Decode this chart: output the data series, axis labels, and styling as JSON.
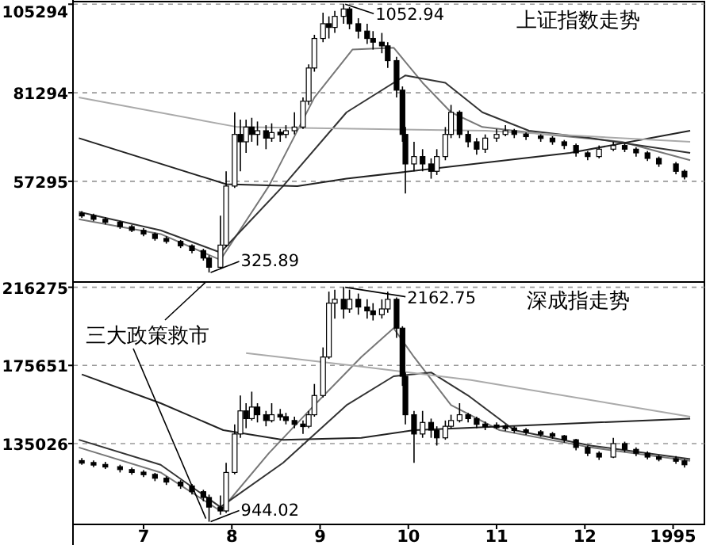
{
  "chart_data": [
    {
      "type": "candlestick",
      "title": "上证指数走势",
      "xlim": [
        "1994-06-07",
        "1995-01-12"
      ],
      "ylim": [
        30000,
        106000
      ],
      "tick_labels": "y",
      "grid": "y",
      "yticks": [
        105294,
        81294,
        57295
      ],
      "x": [
        "1994-06-10",
        "1994-06-14",
        "1994-06-18",
        "1994-06-23",
        "1994-06-27",
        "1994-07-01",
        "1994-07-05",
        "1994-07-09",
        "1994-07-14",
        "1994-07-18",
        "1994-07-22",
        "1994-07-24",
        "1994-07-28",
        "1994-07-30",
        "1994-08-02",
        "1994-08-04",
        "1994-08-06",
        "1994-08-08",
        "1994-08-10",
        "1994-08-13",
        "1994-08-15",
        "1994-08-18",
        "1994-08-20",
        "1994-08-23",
        "1994-08-26",
        "1994-08-28",
        "1994-08-30",
        "1994-09-02",
        "1994-09-04",
        "1994-09-06",
        "1994-09-09",
        "1994-09-11",
        "1994-09-14",
        "1994-09-17",
        "1994-09-19",
        "1994-09-22",
        "1994-09-24",
        "1994-09-27",
        "1994-09-29",
        "1994-09-30",
        "1994-10-03",
        "1994-10-06",
        "1994-10-09",
        "1994-10-11",
        "1994-10-14",
        "1994-10-16",
        "1994-10-19",
        "1994-10-22",
        "1994-10-25",
        "1994-10-28",
        "1994-11-01",
        "1994-11-04",
        "1994-11-07",
        "1994-11-11",
        "1994-11-16",
        "1994-11-20",
        "1994-11-24",
        "1994-11-28",
        "1994-12-02",
        "1994-12-06",
        "1994-12-11",
        "1994-12-15",
        "1994-12-19",
        "1994-12-23",
        "1994-12-27",
        "1995-01-02",
        "1995-01-05"
      ],
      "ohlc": [
        [
          48500,
          49200,
          47400,
          48000
        ],
        [
          48000,
          48500,
          46500,
          47000
        ],
        [
          47000,
          47600,
          45600,
          46200
        ],
        [
          46200,
          46600,
          44400,
          45000
        ],
        [
          45000,
          45500,
          43500,
          44000
        ],
        [
          44000,
          44600,
          42400,
          43000
        ],
        [
          43000,
          43400,
          41200,
          41800
        ],
        [
          41800,
          42400,
          40400,
          41000
        ],
        [
          41000,
          41400,
          39200,
          39800
        ],
        [
          39800,
          40200,
          37800,
          38500
        ],
        [
          38500,
          39000,
          35800,
          36500
        ],
        [
          36500,
          37200,
          32589,
          34000
        ],
        [
          34000,
          48000,
          33500,
          40000
        ],
        [
          40000,
          60000,
          39500,
          56000
        ],
        [
          56000,
          76000,
          55500,
          70000
        ],
        [
          70000,
          74000,
          60000,
          68000
        ],
        [
          68000,
          74000,
          65000,
          72000
        ],
        [
          72000,
          74500,
          68000,
          70000
        ],
        [
          70000,
          73500,
          67000,
          71000
        ],
        [
          71000,
          72500,
          66000,
          69000
        ],
        [
          69000,
          73000,
          68000,
          70500
        ],
        [
          70500,
          71500,
          68000,
          70000
        ],
        [
          70000,
          72500,
          69000,
          71000
        ],
        [
          71000,
          76000,
          70000,
          72000
        ],
        [
          72000,
          80000,
          71500,
          79000
        ],
        [
          79000,
          89000,
          78000,
          88000
        ],
        [
          88000,
          97000,
          87000,
          96000
        ],
        [
          96000,
          103000,
          95000,
          100000
        ],
        [
          100000,
          102000,
          96000,
          99000
        ],
        [
          99000,
          103500,
          97500,
          102000
        ],
        [
          102000,
          105294,
          100000,
          104000
        ],
        [
          104000,
          104500,
          98500,
          100000
        ],
        [
          100000,
          101500,
          96000,
          98000
        ],
        [
          98000,
          100000,
          94500,
          96000
        ],
        [
          96000,
          98000,
          93000,
          95000
        ],
        [
          95000,
          97500,
          92000,
          94000
        ],
        [
          94000,
          95000,
          88000,
          90000
        ],
        [
          90000,
          91000,
          80000,
          82000
        ],
        [
          82000,
          83000,
          68000,
          70000
        ],
        [
          70000,
          72000,
          54000,
          62000
        ],
        [
          62000,
          68000,
          60000,
          64000
        ],
        [
          64000,
          66000,
          60000,
          62000
        ],
        [
          62000,
          63500,
          58000,
          60000
        ],
        [
          60000,
          66000,
          59000,
          64000
        ],
        [
          64000,
          72000,
          63000,
          70000
        ],
        [
          70000,
          78000,
          69000,
          76000
        ],
        [
          76000,
          76500,
          69000,
          70000
        ],
        [
          70000,
          71000,
          66500,
          68000
        ],
        [
          68000,
          69000,
          64500,
          66000
        ],
        [
          66000,
          70000,
          65000,
          69000
        ],
        [
          69000,
          71500,
          68000,
          70000
        ],
        [
          70000,
          72500,
          69500,
          71000
        ],
        [
          71000,
          71500,
          69000,
          70000
        ],
        [
          70000,
          70500,
          68500,
          69500
        ],
        [
          69500,
          70000,
          68000,
          69000
        ],
        [
          69000,
          69500,
          67200,
          68000
        ],
        [
          68000,
          68500,
          66000,
          67000
        ],
        [
          67000,
          67500,
          64000,
          65000
        ],
        [
          65000,
          65500,
          63000,
          64000
        ],
        [
          64000,
          67000,
          63500,
          66000
        ],
        [
          66000,
          68000,
          65500,
          67000
        ],
        [
          67000,
          67500,
          65200,
          66000
        ],
        [
          66000,
          66500,
          64000,
          65000
        ],
        [
          65000,
          65500,
          62800,
          63500
        ],
        [
          63500,
          64000,
          61200,
          62000
        ],
        [
          62000,
          62500,
          59200,
          60000
        ],
        [
          60000,
          60500,
          57800,
          58500
        ]
      ],
      "series": [
        {
          "type": "line",
          "color": "#777777",
          "x": [
            "1994-06-09",
            "1994-07-07",
            "1994-07-28",
            "1994-08-14",
            "1994-08-30",
            "1994-09-12",
            "1994-09-26",
            "1994-10-06",
            "1994-10-16",
            "1994-10-27",
            "1994-11-18",
            "1994-12-14",
            "1995-01-07"
          ],
          "values": [
            47000,
            43000,
            36000,
            56000,
            80000,
            93000,
            93500,
            84000,
            76000,
            72000,
            70000,
            68000,
            63000
          ]
        },
        {
          "type": "line",
          "color": "#333333",
          "x": [
            "1994-06-09",
            "1994-07-07",
            "1994-07-28",
            "1994-08-19",
            "1994-09-10",
            "1994-09-30",
            "1994-10-14",
            "1994-10-27",
            "1994-11-12",
            "1994-12-03",
            "1995-01-07"
          ],
          "values": [
            49000,
            44000,
            38000,
            56000,
            76000,
            86000,
            84000,
            76000,
            71000,
            69000,
            65000
          ]
        },
        {
          "type": "line",
          "color": "#222222",
          "x": [
            "1994-06-09",
            "1994-07-30",
            "1994-08-24",
            "1994-09-10",
            "1994-11-26",
            "1995-01-07"
          ],
          "values": [
            69000,
            56500,
            56000,
            58000,
            65000,
            71000
          ]
        },
        {
          "type": "line",
          "color": "#aaaaaa",
          "x": [
            "1994-06-09",
            "1994-08-03",
            "1994-10-28",
            "1995-01-07"
          ],
          "values": [
            80000,
            72000,
            71000,
            68000
          ]
        }
      ],
      "annotations": [
        {
          "text": "1052.94",
          "x": "1994-09-09",
          "y": 105294
        },
        {
          "text": "325.89",
          "x": "1994-07-24",
          "y": 32589
        }
      ]
    },
    {
      "type": "candlestick",
      "title": "深成指走势",
      "xlim": [
        "1994-06-07",
        "1995-01-12"
      ],
      "ylim": [
        93000,
        219000
      ],
      "grid": "y",
      "yticks": [
        216275,
        175651,
        135026
      ],
      "xticks": [
        {
          "value": "1994-07",
          "label": "7"
        },
        {
          "value": "1994-08",
          "label": "8"
        },
        {
          "value": "1994-09",
          "label": "9"
        },
        {
          "value": "1994-10",
          "label": "10"
        },
        {
          "value": "1994-11",
          "label": "11"
        },
        {
          "value": "1994-12",
          "label": "12"
        },
        "1995"
      ],
      "x": [
        "1994-06-10",
        "1994-06-14",
        "1994-06-18",
        "1994-06-23",
        "1994-06-27",
        "1994-07-01",
        "1994-07-05",
        "1994-07-09",
        "1994-07-14",
        "1994-07-18",
        "1994-07-22",
        "1994-07-24",
        "1994-07-28",
        "1994-07-30",
        "1994-08-02",
        "1994-08-04",
        "1994-08-06",
        "1994-08-08",
        "1994-08-10",
        "1994-08-13",
        "1994-08-15",
        "1994-08-18",
        "1994-08-20",
        "1994-08-23",
        "1994-08-26",
        "1994-08-28",
        "1994-08-30",
        "1994-09-02",
        "1994-09-04",
        "1994-09-06",
        "1994-09-09",
        "1994-09-11",
        "1994-09-14",
        "1994-09-17",
        "1994-09-19",
        "1994-09-22",
        "1994-09-24",
        "1994-09-27",
        "1994-09-29",
        "1994-09-30",
        "1994-10-03",
        "1994-10-06",
        "1994-10-09",
        "1994-10-11",
        "1994-10-14",
        "1994-10-16",
        "1994-10-19",
        "1994-10-22",
        "1994-10-25",
        "1994-10-28",
        "1994-11-01",
        "1994-11-04",
        "1994-11-07",
        "1994-11-11",
        "1994-11-16",
        "1994-11-20",
        "1994-11-24",
        "1994-11-28",
        "1994-12-02",
        "1994-12-06",
        "1994-12-11",
        "1994-12-15",
        "1994-12-19",
        "1994-12-23",
        "1994-12-27",
        "1995-01-02",
        "1995-01-05"
      ],
      "ohlc": [
        [
          126000,
          127500,
          124000,
          125000
        ],
        [
          125000,
          126200,
          122800,
          124000
        ],
        [
          124000,
          125500,
          121800,
          123000
        ],
        [
          123000,
          124000,
          120000,
          121500
        ],
        [
          121500,
          122500,
          118800,
          120000
        ],
        [
          120000,
          121200,
          117600,
          119000
        ],
        [
          119000,
          119800,
          115500,
          117000
        ],
        [
          117000,
          118000,
          113500,
          115000
        ],
        [
          115000,
          116000,
          111500,
          113000
        ],
        [
          113000,
          114000,
          108500,
          110000
        ],
        [
          110000,
          111000,
          105000,
          107000
        ],
        [
          107000,
          108500,
          94402,
          102000
        ],
        [
          102000,
          108000,
          98000,
          100000
        ],
        [
          100000,
          125000,
          99000,
          120000
        ],
        [
          120000,
          145000,
          119000,
          140000
        ],
        [
          140000,
          160000,
          138000,
          152000
        ],
        [
          152000,
          156000,
          143000,
          148000
        ],
        [
          148000,
          162000,
          147000,
          154000
        ],
        [
          154000,
          156000,
          146000,
          150000
        ],
        [
          150000,
          152000,
          144000,
          147000
        ],
        [
          147000,
          156000,
          146000,
          150000
        ],
        [
          150000,
          153000,
          147000,
          149000
        ],
        [
          149000,
          151000,
          145000,
          147000
        ],
        [
          147000,
          149000,
          143000,
          145000
        ],
        [
          145000,
          147000,
          140000,
          144000
        ],
        [
          144000,
          152000,
          143000,
          150000
        ],
        [
          150000,
          166000,
          149000,
          160000
        ],
        [
          160000,
          185000,
          159000,
          180000
        ],
        [
          180000,
          214000,
          179000,
          208000
        ],
        [
          208000,
          215000,
          200000,
          210000
        ],
        [
          210000,
          216275,
          200000,
          205000
        ],
        [
          205000,
          215000,
          203000,
          210000
        ],
        [
          210000,
          213000,
          202000,
          206000
        ],
        [
          206000,
          210000,
          200000,
          204000
        ],
        [
          204000,
          208000,
          199000,
          202000
        ],
        [
          202000,
          210000,
          200000,
          205000
        ],
        [
          205000,
          214000,
          203000,
          210000
        ],
        [
          210000,
          211000,
          190000,
          195000
        ],
        [
          195000,
          196000,
          165000,
          170000
        ],
        [
          170000,
          172000,
          145000,
          150000
        ],
        [
          150000,
          152000,
          125000,
          140000
        ],
        [
          140000,
          152000,
          138000,
          146000
        ],
        [
          146000,
          148000,
          138000,
          142000
        ],
        [
          142000,
          144000,
          134000,
          138000
        ],
        [
          138000,
          147000,
          137000,
          144000
        ],
        [
          144000,
          150000,
          143000,
          147000
        ],
        [
          147000,
          156000,
          146000,
          150000
        ],
        [
          150000,
          151000,
          146000,
          148000
        ],
        [
          148000,
          149000,
          143000,
          145000
        ],
        [
          145000,
          146500,
          142000,
          144000
        ],
        [
          144000,
          146000,
          142500,
          144000
        ],
        [
          144000,
          145000,
          141500,
          143000
        ],
        [
          143000,
          144000,
          140500,
          142000
        ],
        [
          142000,
          143000,
          139500,
          141000
        ],
        [
          141000,
          142000,
          138500,
          140000
        ],
        [
          140000,
          141000,
          137500,
          139000
        ],
        [
          139000,
          139500,
          135500,
          137000
        ],
        [
          137000,
          137500,
          131500,
          133000
        ],
        [
          133000,
          134000,
          128500,
          130000
        ],
        [
          130000,
          131000,
          126500,
          128000
        ],
        [
          128000,
          138000,
          127500,
          135000
        ],
        [
          135000,
          136000,
          130500,
          132000
        ],
        [
          132000,
          133000,
          128500,
          130000
        ],
        [
          130000,
          131000,
          126800,
          128000
        ],
        [
          128000,
          129000,
          125800,
          127000
        ],
        [
          127000,
          128500,
          124500,
          126000
        ],
        [
          126000,
          127000,
          122500,
          124000
        ]
      ],
      "series": [
        {
          "type": "line",
          "color": "#777777",
          "x": [
            "1994-06-09",
            "1994-07-07",
            "1994-07-28",
            "1994-08-14",
            "1994-08-30",
            "1994-09-15",
            "1994-09-26",
            "1994-10-03",
            "1994-10-16",
            "1994-11-02",
            "1994-12-03",
            "1995-01-07"
          ],
          "values": [
            133000,
            120000,
            100000,
            130000,
            155000,
            180000,
            195000,
            180000,
            155000,
            142000,
            133000,
            126000
          ]
        },
        {
          "type": "line",
          "color": "#333333",
          "x": [
            "1994-06-09",
            "1994-07-07",
            "1994-07-28",
            "1994-08-19",
            "1994-09-10",
            "1994-09-26",
            "1994-10-09",
            "1994-10-22",
            "1994-11-07",
            "1994-12-03",
            "1995-01-07"
          ],
          "values": [
            137000,
            124000,
            102000,
            125000,
            155000,
            170000,
            172000,
            160000,
            142000,
            134000,
            127000
          ]
        },
        {
          "type": "line",
          "color": "#222222",
          "x": [
            "1994-06-10",
            "1994-07-07",
            "1994-07-29",
            "1994-08-19",
            "1994-09-15",
            "1994-10-03",
            "1995-01-07"
          ],
          "values": [
            171000,
            156000,
            142000,
            137000,
            138000,
            142000,
            148000
          ]
        },
        {
          "type": "line",
          "color": "#aaaaaa",
          "x": [
            "1994-08-06",
            "1994-09-15",
            "1994-10-23",
            "1995-01-07"
          ],
          "values": [
            182000,
            175000,
            168000,
            149000
          ]
        }
      ],
      "annotations": [
        {
          "text": "2162.75",
          "x": "1994-09-09",
          "y": 216275
        },
        {
          "text": "944.02",
          "x": "1994-07-24",
          "y": 94402
        },
        {
          "text": "三大政策救市",
          "x": "1994-07-24",
          "y": 94402
        }
      ]
    }
  ]
}
